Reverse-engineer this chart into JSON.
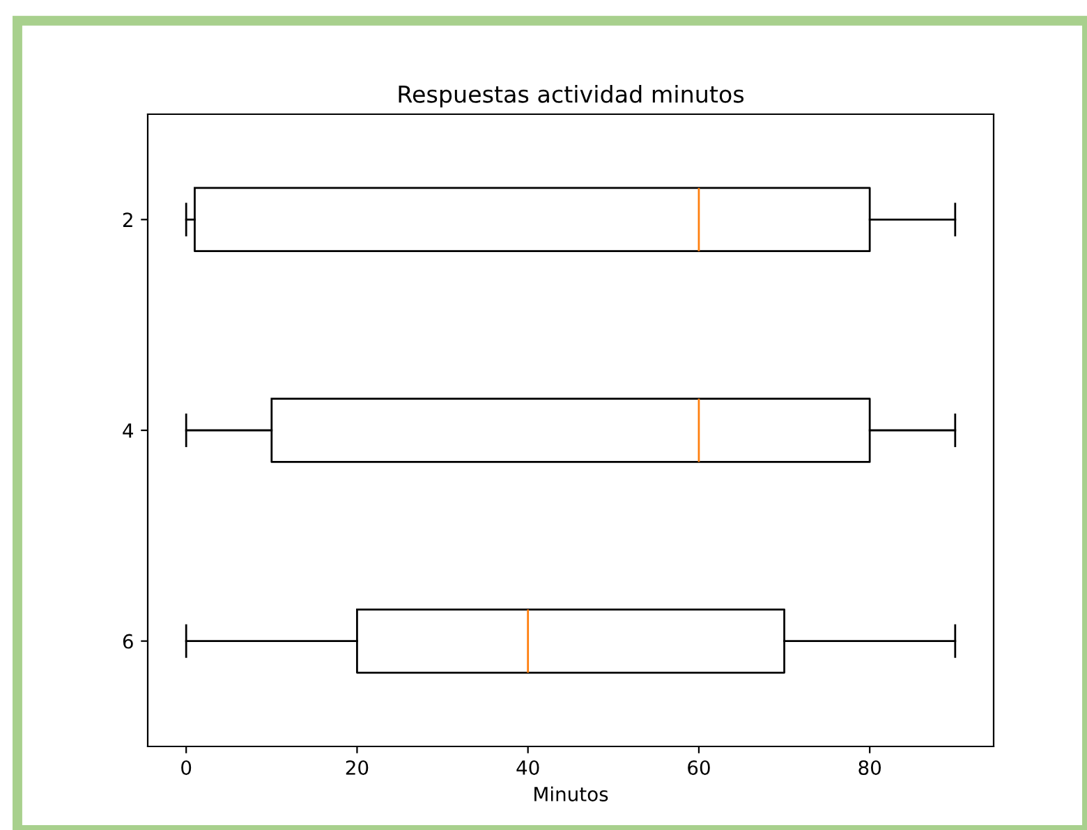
{
  "chart_data": {
    "type": "box",
    "orientation": "horizontal",
    "title": "Respuestas actividad minutos",
    "xlabel": "Minutos",
    "categories": [
      "2",
      "4",
      "6"
    ],
    "boxes": [
      {
        "low": 0,
        "q1": 1,
        "median": 60,
        "q3": 80,
        "high": 90
      },
      {
        "low": 0,
        "q1": 10,
        "median": 60,
        "q3": 80,
        "high": 90
      },
      {
        "low": 0,
        "q1": 20,
        "median": 40,
        "q3": 70,
        "high": 90
      }
    ],
    "color": "#000000",
    "xlim": [
      -4.5,
      94.5
    ],
    "xticks": [
      0,
      20,
      40,
      60,
      80
    ],
    "grid": false
  }
}
